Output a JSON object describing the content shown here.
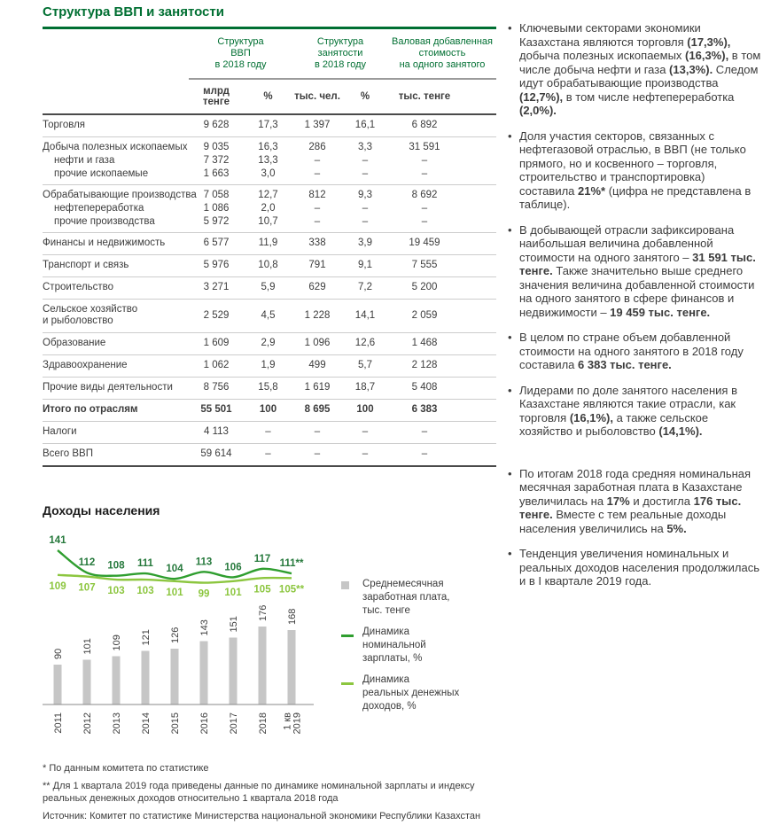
{
  "colors": {
    "accent_green": "#006f32",
    "bar_gray": "#c6c6c6",
    "line_nominal": "#2f9e2f",
    "line_nominal_label": "#26793c",
    "line_real": "#8cc63f",
    "text": "#3c3c3c"
  },
  "gdp_section": {
    "title": "Структура ВВП и занятости"
  },
  "gdp_table": {
    "col_groups": [
      "Структура\nВВП\nв 2018 году",
      "Структура\nзанятости\nв 2018 году",
      "Валовая добавленная\nстоимость\nна одного занятого"
    ],
    "units": [
      "млрд\nтенге",
      "%",
      "тыс. чел.",
      "%",
      "тыс. тенге"
    ],
    "rows": [
      {
        "label": "Торговля",
        "values": [
          "9 628",
          "17,3",
          "1 397",
          "16,1",
          "6 892"
        ],
        "style": "sep"
      },
      {
        "label": "Добыча полезных ископаемых",
        "values": [
          "9 035",
          "16,3",
          "286",
          "3,3",
          "31 591"
        ],
        "style": "parent"
      },
      {
        "label": "нефти и газа",
        "values": [
          "7 372",
          "13,3",
          "–",
          "–",
          "–"
        ],
        "style": "sub"
      },
      {
        "label": "прочие ископаемые",
        "values": [
          "1 663",
          "3,0",
          "–",
          "–",
          "–"
        ],
        "style": "sub sep"
      },
      {
        "label": "Обрабатывающие производства",
        "values": [
          "7 058",
          "12,7",
          "812",
          "9,3",
          "8 692"
        ],
        "style": "parent"
      },
      {
        "label": "нефтепереработка",
        "values": [
          "1 086",
          "2,0",
          "–",
          "–",
          "–"
        ],
        "style": "sub"
      },
      {
        "label": "прочие производства",
        "values": [
          "5 972",
          "10,7",
          "–",
          "–",
          "–"
        ],
        "style": "sub sep"
      },
      {
        "label": "Финансы и недвижимость",
        "values": [
          "6 577",
          "11,9",
          "338",
          "3,9",
          "19 459"
        ],
        "style": "sep"
      },
      {
        "label": "Транспорт и связь",
        "values": [
          "5 976",
          "10,8",
          "791",
          "9,1",
          "7 555"
        ],
        "style": "sep"
      },
      {
        "label": "Строительство",
        "values": [
          "3 271",
          "5,9",
          "629",
          "7,2",
          "5 200"
        ],
        "style": "sep"
      },
      {
        "label": "Сельское хозяйство\nи рыболовство",
        "values": [
          "2 529",
          "4,5",
          "1 228",
          "14,1",
          "2 059"
        ],
        "style": "sep"
      },
      {
        "label": "Образование",
        "values": [
          "1 609",
          "2,9",
          "1 096",
          "12,6",
          "1 468"
        ],
        "style": "sep"
      },
      {
        "label": "Здравоохранение",
        "values": [
          "1 062",
          "1,9",
          "499",
          "5,7",
          "2 128"
        ],
        "style": "sep"
      },
      {
        "label": "Прочие виды деятельности",
        "values": [
          "8 756",
          "15,8",
          "1 619",
          "18,7",
          "5 408"
        ],
        "style": "sep"
      },
      {
        "label": "Итого по отраслям",
        "values": [
          "55 501",
          "100",
          "8 695",
          "100",
          "6 383"
        ],
        "style": "total sep"
      },
      {
        "label": "Налоги",
        "values": [
          "4 113",
          "–",
          "–",
          "–",
          "–"
        ],
        "style": "sep"
      },
      {
        "label": "Всего ВВП",
        "values": [
          "59 614",
          "–",
          "–",
          "–",
          "–"
        ],
        "style": "final"
      }
    ]
  },
  "chart_data": {
    "type": "bar+line",
    "title": "Доходы населения",
    "categories": [
      "2011",
      "2012",
      "2013",
      "2014",
      "2015",
      "2016",
      "2017",
      "2018",
      "1 кв\n2019"
    ],
    "bar_series": {
      "name": "Среднемесячная\nзаработная плата,\nтыс. тенге",
      "values": [
        90,
        101,
        109,
        121,
        126,
        143,
        151,
        176,
        168
      ],
      "color": "#c6c6c6"
    },
    "line_series": [
      {
        "name": "Динамика\nноминальной\nзарплаты, %",
        "values": [
          141,
          112,
          108,
          111,
          104,
          113,
          106,
          117,
          111
        ],
        "labels": [
          "141",
          "112",
          "108",
          "111",
          "104",
          "113",
          "106",
          "117",
          "111**"
        ],
        "color": "#2f9e2f",
        "label_color": "#26793c"
      },
      {
        "name": "Динамика\nреальных денежных\nдоходов, %",
        "values": [
          109,
          107,
          103,
          103,
          101,
          99,
          101,
          105,
          105
        ],
        "labels": [
          "109",
          "107",
          "103",
          "103",
          "101",
          "99",
          "101",
          "105",
          "105**"
        ],
        "color": "#8cc63f",
        "label_color": "#8cc63f"
      }
    ],
    "legend_position": "right",
    "grid": false
  },
  "sidebar": {
    "bullets": [
      {
        "segments": [
          {
            "t": "Ключевыми секторами экономики Казахстана являются торговля "
          },
          {
            "t": "(17,3%),",
            "b": true
          },
          {
            "t": " добыча полезных ископаемых "
          },
          {
            "t": "(16,3%),",
            "b": true
          },
          {
            "t": " в том числе добыча нефти и газа "
          },
          {
            "t": "(13,3%).",
            "b": true
          },
          {
            "t": " Следом идут обрабатывающие производства "
          },
          {
            "t": "(12,7%),",
            "b": true
          },
          {
            "t": " в том числе нефтепереработка "
          },
          {
            "t": "(2,0%).",
            "b": true
          }
        ]
      },
      {
        "segments": [
          {
            "t": "Доля участия секторов, связанных с нефтегазовой отраслью, в ВВП (не только прямого, но и косвенного – торговля, строительство и транспортировка) составила "
          },
          {
            "t": "21%*",
            "b": true
          },
          {
            "t": " (цифра не представлена в таблице)."
          }
        ]
      },
      {
        "segments": [
          {
            "t": "В добывающей отрасли зафиксирована наибольшая величина добавленной стоимости на одного занятого – "
          },
          {
            "t": "31 591 тыс. тенге.",
            "b": true
          },
          {
            "t": " Также значительно выше среднего значения величина добавленной стоимости на одного занятого в сфере финансов и недвижимости – "
          },
          {
            "t": "19 459 тыс. тенге.",
            "b": true
          }
        ]
      },
      {
        "segments": [
          {
            "t": "В целом по стране объем добавленной стоимости на одного занятого в 2018 году составила "
          },
          {
            "t": "6 383 тыс. тенге.",
            "b": true
          }
        ]
      },
      {
        "segments": [
          {
            "t": "Лидерами по доле занятого населения в Казахстане являются такие отрасли, как торговля "
          },
          {
            "t": "(16,1%),",
            "b": true
          },
          {
            "t": " а также сельское хозяйство и рыболовство "
          },
          {
            "t": "(14,1%).",
            "b": true
          }
        ]
      },
      {
        "gap_before": true,
        "segments": [
          {
            "t": "По итогам 2018 года средняя номинальная месячная заработная плата в Казахстане увеличилась на "
          },
          {
            "t": "17%",
            "b": true
          },
          {
            "t": " и достигла "
          },
          {
            "t": "176 тыс. тенге.",
            "b": true
          },
          {
            "t": " Вместе с тем реальные доходы населения увеличились на "
          },
          {
            "t": "5%.",
            "b": true
          }
        ]
      },
      {
        "segments": [
          {
            "t": "Тенденция увеличения номинальных и реальных доходов населения продолжилась и в I квартале 2019 года."
          }
        ]
      }
    ]
  },
  "footnotes": [
    "* По данным комитета по статистике",
    "** Для 1 квартала 2019 года приведены данные по динамике номинальной зарплаты и индексу реальных денежных доходов относительно 1 квартала 2018 года",
    "Источник: Комитет по статистике Министерства национальной экономики Республики Казахстан"
  ]
}
